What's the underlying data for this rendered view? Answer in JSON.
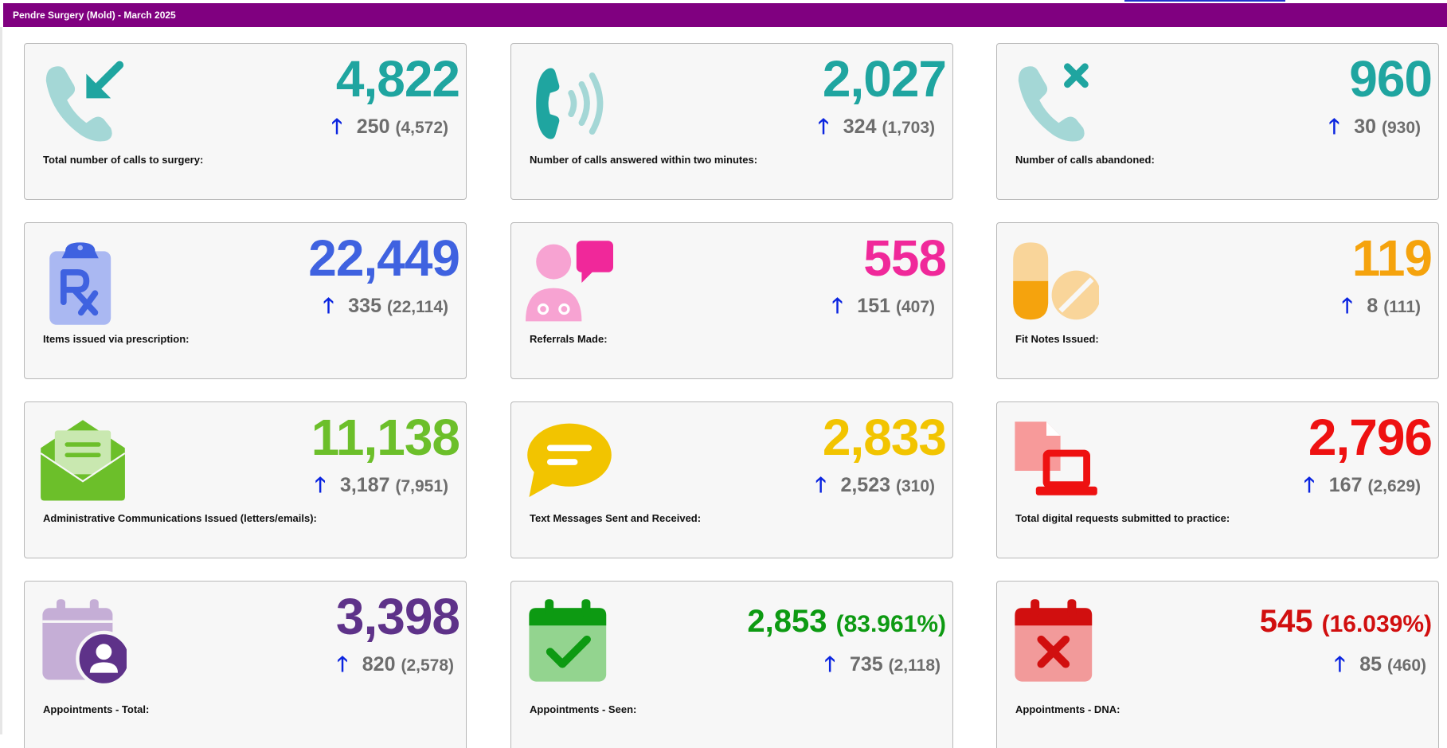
{
  "header": {
    "title": "Pendre Surgery (Mold) - March 2025"
  },
  "cards": [
    {
      "label": "Total number of calls to surgery:",
      "value": "4,822",
      "change": "250",
      "previous": "(4,572)",
      "color": "#1fa5a0",
      "icon": "phone-incoming-icon"
    },
    {
      "label": "Number of calls answered within two minutes:",
      "value": "2,027",
      "change": "324",
      "previous": "(1,703)",
      "color": "#1fa5a0",
      "icon": "phone-ringing-icon"
    },
    {
      "label": "Number of calls abandoned:",
      "value": "960",
      "change": "30",
      "previous": "(930)",
      "color": "#1fa5a0",
      "icon": "phone-missed-icon"
    },
    {
      "label": "Items issued via prescription:",
      "value": "22,449",
      "change": "335",
      "previous": "(22,114)",
      "color": "#3f62e0",
      "icon": "prescription-clipboard-icon"
    },
    {
      "label": "Referrals Made:",
      "value": "558",
      "change": "151",
      "previous": "(407)",
      "color": "#f0289a",
      "icon": "doctor-chat-icon"
    },
    {
      "label": "Fit Notes Issued:",
      "value": "119",
      "change": "8",
      "previous": "(111)",
      "color": "#f5a30d",
      "icon": "pills-icon"
    },
    {
      "label": "Administrative Communications Issued (letters/emails):",
      "value": "11,138",
      "change": "3,187",
      "previous": "(7,951)",
      "color": "#6cbf2a",
      "icon": "open-envelope-icon"
    },
    {
      "label": "Text Messages Sent and Received:",
      "value": "2,833",
      "change": "2,523",
      "previous": "(310)",
      "color": "#f2c400",
      "icon": "speech-bubble-icon"
    },
    {
      "label": "Total digital requests submitted to practice:",
      "value": "2,796",
      "change": "167",
      "previous": "(2,629)",
      "color": "#ee1111",
      "icon": "laptop-document-icon"
    },
    {
      "label": "Appointments - Total:",
      "value": "3,398",
      "percent": "",
      "change": "820",
      "previous": "(2,578)",
      "color": "#5e3289",
      "icon": "calendar-user-icon"
    },
    {
      "label": "Appointments - Seen:",
      "value": "2,853",
      "percent": "(83.961%)",
      "change": "735",
      "previous": "(2,118)",
      "color": "#0d9a12",
      "icon": "calendar-check-icon"
    },
    {
      "label": "Appointments - DNA:",
      "value": "545",
      "percent": "(16.039%)",
      "change": "85",
      "previous": "(460)",
      "color": "#d10f0f",
      "icon": "calendar-cross-icon"
    }
  ],
  "arrow_glyph": "🡑"
}
